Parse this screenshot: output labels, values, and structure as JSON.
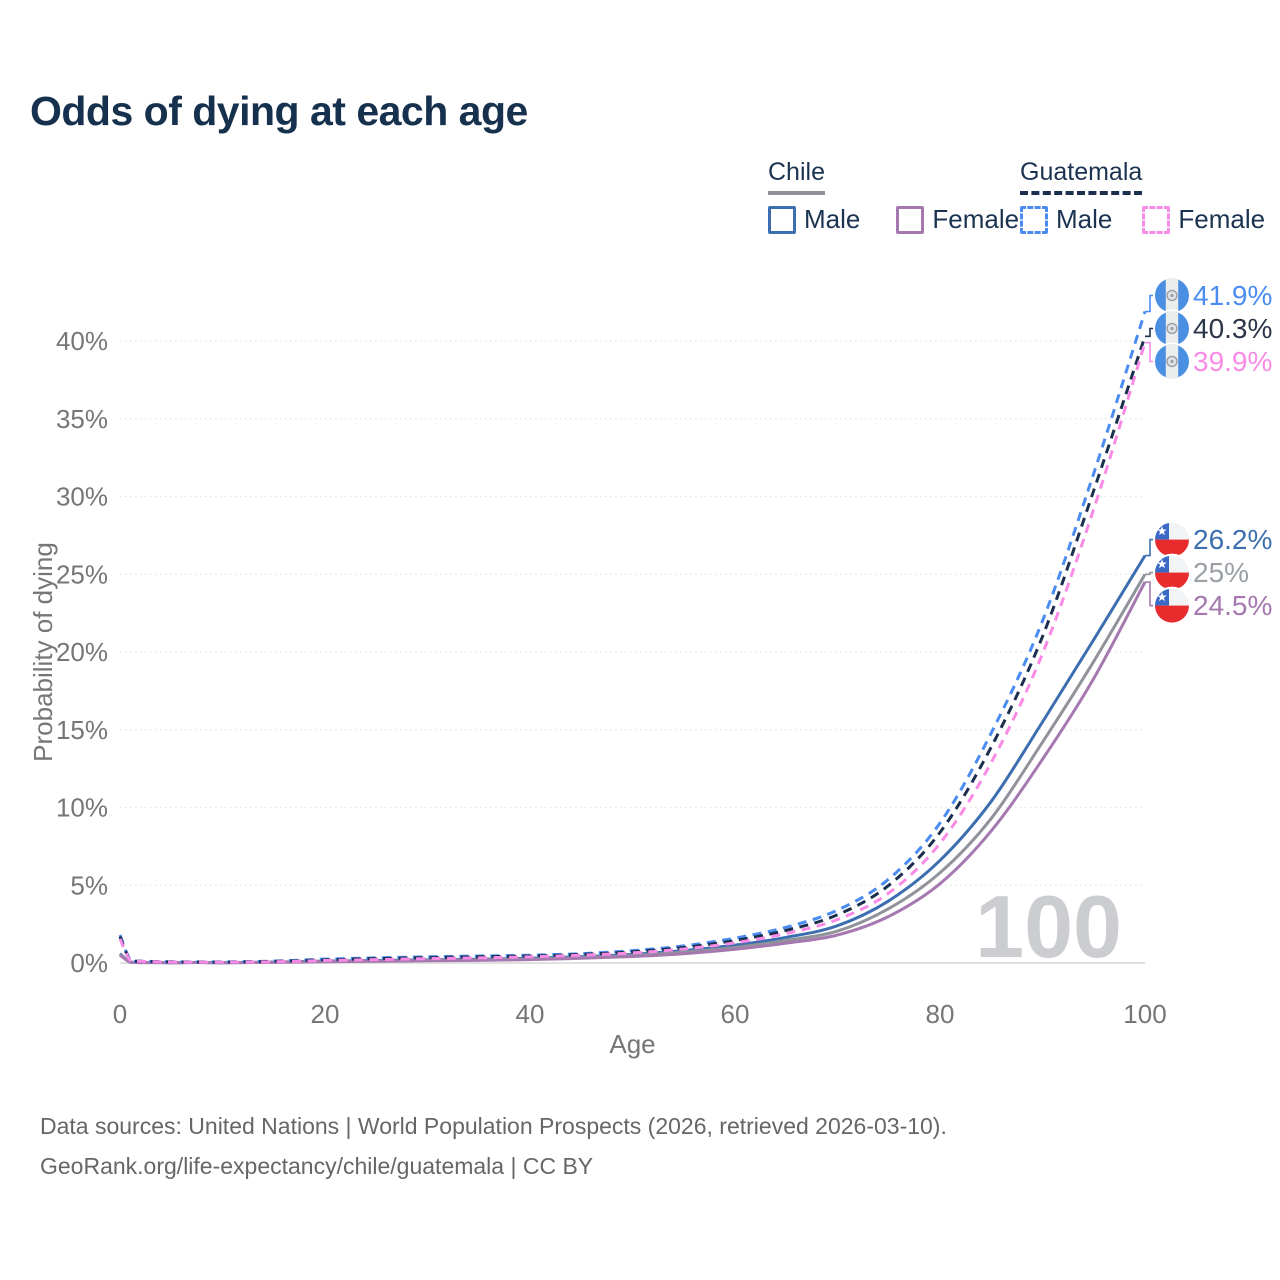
{
  "title": "Odds of dying at each age",
  "legend": {
    "groups": [
      {
        "label": "Chile",
        "style": "solid",
        "items": [
          {
            "label": "Male",
            "color": "#3d6fb0"
          },
          {
            "label": "Female",
            "color": "#a678b0"
          }
        ]
      },
      {
        "label": "Guatemala",
        "style": "dashed",
        "items": [
          {
            "label": "Male",
            "color": "#4a8cf2"
          },
          {
            "label": "Female",
            "color": "#f98be7"
          }
        ]
      }
    ]
  },
  "footer": {
    "line1": "Data sources: United Nations | World Population Prospects (2026, retrieved 2026-03-10).",
    "line2": "GeoRank.org/life-expectancy/chile/guatemala | CC BY"
  },
  "chart_data": {
    "type": "line",
    "title": "Odds of dying at each age",
    "xlabel": "Age",
    "ylabel": "Probability of dying",
    "xlim": [
      0,
      100
    ],
    "ylim": [
      0,
      43
    ],
    "xticks": [
      0,
      20,
      40,
      60,
      80,
      100
    ],
    "ytick_values": [
      0,
      5,
      10,
      15,
      20,
      25,
      30,
      35,
      40
    ],
    "ytick_labels": [
      "0%",
      "5%",
      "10%",
      "15%",
      "20%",
      "25%",
      "30%",
      "35%",
      "40%"
    ],
    "grid": "horizontal-dotted",
    "legend_position": "top-right",
    "watermark": "100",
    "x": [
      0,
      1,
      2,
      5,
      10,
      15,
      20,
      25,
      30,
      35,
      40,
      45,
      50,
      55,
      60,
      65,
      70,
      75,
      80,
      85,
      90,
      95,
      100
    ],
    "series": [
      {
        "name": "Chile Male",
        "country": "Chile",
        "sex": "Male",
        "line": "solid",
        "color": "#3d6fb0",
        "label_color": "#3d6fb0",
        "end_label": "26.2%",
        "flag": "chile",
        "values": [
          0.6,
          0.06,
          0.03,
          0.02,
          0.02,
          0.06,
          0.12,
          0.16,
          0.2,
          0.24,
          0.3,
          0.4,
          0.55,
          0.8,
          1.15,
          1.65,
          2.4,
          4.0,
          6.6,
          10.4,
          15.5,
          20.8,
          26.2
        ]
      },
      {
        "name": "Chile Both sexes",
        "country": "Chile",
        "sex": "Both",
        "line": "solid",
        "color": "#909399",
        "label_color": "#9aa0a6",
        "end_label": "25%",
        "flag": "chile",
        "values": [
          0.55,
          0.05,
          0.03,
          0.02,
          0.02,
          0.05,
          0.1,
          0.13,
          0.17,
          0.2,
          0.26,
          0.35,
          0.48,
          0.7,
          1.0,
          1.45,
          2.05,
          3.5,
          5.8,
          9.3,
          14.2,
          19.4,
          25.0
        ]
      },
      {
        "name": "Chile Female",
        "country": "Chile",
        "sex": "Female",
        "line": "solid",
        "color": "#a678b0",
        "label_color": "#a678b0",
        "end_label": "24.5%",
        "flag": "chile",
        "values": [
          0.5,
          0.05,
          0.02,
          0.02,
          0.02,
          0.04,
          0.08,
          0.11,
          0.14,
          0.17,
          0.22,
          0.3,
          0.42,
          0.6,
          0.88,
          1.28,
          1.8,
          3.0,
          5.1,
          8.5,
          13.1,
          18.3,
          24.5
        ]
      },
      {
        "name": "Guatemala Male",
        "country": "Guatemala",
        "sex": "Male",
        "line": "dashed",
        "color": "#4a8cf2",
        "label_color": "#4a8cf2",
        "end_label": "41.9%",
        "flag": "guatemala",
        "values": [
          1.8,
          0.2,
          0.12,
          0.08,
          0.07,
          0.12,
          0.25,
          0.33,
          0.4,
          0.45,
          0.5,
          0.6,
          0.8,
          1.1,
          1.6,
          2.3,
          3.4,
          5.4,
          9.0,
          14.8,
          22.0,
          31.5,
          41.9
        ]
      },
      {
        "name": "Guatemala Both sexes",
        "country": "Guatemala",
        "sex": "Both",
        "line": "dashed",
        "color": "#1c2f4e",
        "label_color": "#2b3648",
        "end_label": "40.3%",
        "flag": "guatemala",
        "values": [
          1.7,
          0.18,
          0.11,
          0.07,
          0.06,
          0.1,
          0.2,
          0.28,
          0.34,
          0.4,
          0.45,
          0.55,
          0.72,
          1.0,
          1.45,
          2.1,
          3.1,
          5.0,
          8.4,
          13.9,
          21.0,
          30.4,
          40.3
        ]
      },
      {
        "name": "Guatemala Female",
        "country": "Guatemala",
        "sex": "Female",
        "line": "dashed",
        "color": "#f98be7",
        "label_color": "#f98be7",
        "end_label": "39.9%",
        "flag": "guatemala",
        "values": [
          1.55,
          0.16,
          0.1,
          0.06,
          0.05,
          0.08,
          0.16,
          0.22,
          0.28,
          0.33,
          0.4,
          0.5,
          0.65,
          0.9,
          1.3,
          1.9,
          2.8,
          4.5,
          7.7,
          12.9,
          19.9,
          29.2,
          39.9
        ]
      }
    ]
  }
}
